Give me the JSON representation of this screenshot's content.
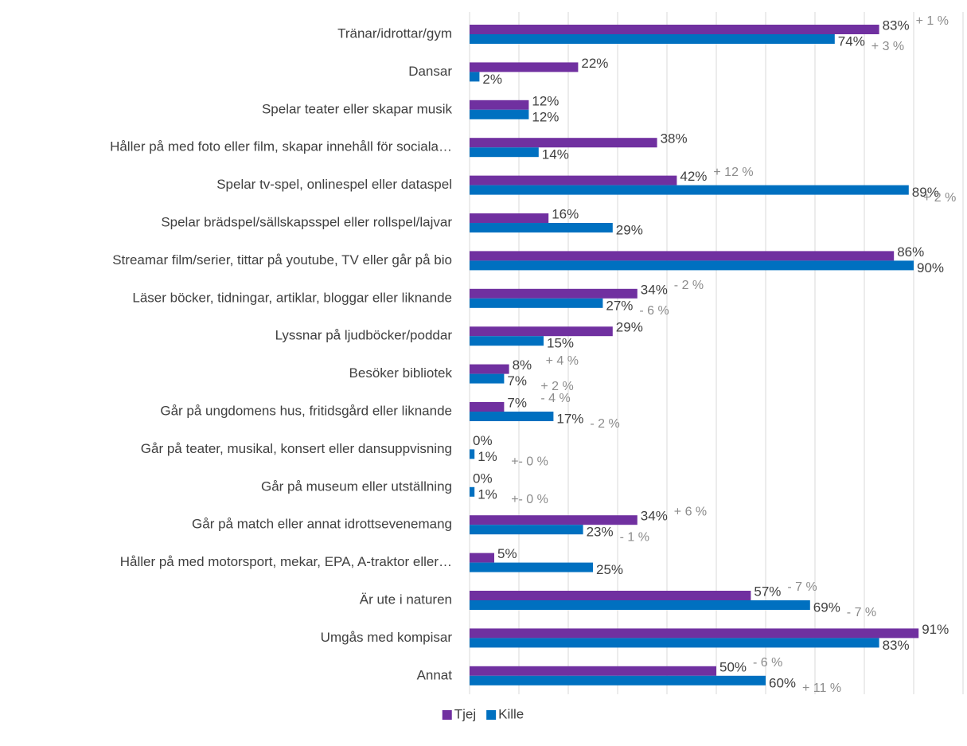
{
  "chart_data": {
    "type": "bar",
    "orientation": "horizontal",
    "categories": [
      "Tränar/idrottar/gym",
      "Dansar",
      "Spelar teater eller skapar musik",
      "Håller på med foto eller film, skapar innehåll för sociala…",
      "Spelar tv-spel, onlinespel eller dataspel",
      "Spelar brädspel/sällskapsspel eller rollspel/lajvar",
      "Streamar film/serier, tittar på youtube, TV eller går på bio",
      "Läser böcker, tidningar, artiklar, bloggar eller liknande",
      "Lyssnar på ljudböcker/poddar",
      "Besöker bibliotek",
      "Går på ungdomens hus, fritidsgård eller liknande",
      "Går på teater, musikal, konsert eller dansuppvisning",
      "Går på museum eller utställning",
      "Går på match eller annat idrottsevenemang",
      "Håller på med motorsport, mekar, EPA, A-traktor eller…",
      "Är ute i naturen",
      "Umgås med kompisar",
      "Annat"
    ],
    "series": [
      {
        "name": "Tjej",
        "color": "#7030a0",
        "values": [
          83,
          22,
          12,
          38,
          42,
          16,
          86,
          34,
          29,
          8,
          7,
          0,
          0,
          34,
          5,
          57,
          91,
          50
        ],
        "value_labels": [
          "83%",
          "22%",
          "12%",
          "38%",
          "42%",
          "16%",
          "86%",
          "34%",
          "29%",
          "8%",
          "7%",
          "0%",
          "0%",
          "34%",
          "5%",
          "57%",
          "91%",
          "50%"
        ],
        "changes": [
          "+ 1 %",
          null,
          null,
          null,
          "+ 12 %",
          null,
          null,
          "- 2 %",
          null,
          "+ 4 %",
          "- 4 %",
          null,
          null,
          "+ 6 %",
          null,
          "- 7 %",
          null,
          "- 6 %"
        ]
      },
      {
        "name": "Kille",
        "color": "#0070c0",
        "values": [
          74,
          2,
          12,
          14,
          89,
          29,
          90,
          27,
          15,
          7,
          17,
          1,
          1,
          23,
          25,
          69,
          83,
          60
        ],
        "value_labels": [
          "74%",
          "2%",
          "12%",
          "14%",
          "89%",
          "29%",
          "90%",
          "27%",
          "15%",
          "7%",
          "17%",
          "1%",
          "1%",
          "23%",
          "25%",
          "69%",
          "83%",
          "60%"
        ],
        "changes": [
          "+ 3 %",
          null,
          null,
          null,
          "+ 2 %",
          null,
          null,
          "- 6 %",
          null,
          "+ 2 %",
          "- 2 %",
          "+- 0 %",
          "+- 0 %",
          "- 1 %",
          null,
          "- 7 %",
          null,
          "+ 11 %"
        ]
      }
    ],
    "xlim": [
      0,
      100
    ],
    "xticks": [
      0,
      10,
      20,
      30,
      40,
      50,
      60,
      70,
      80,
      90,
      100
    ],
    "grid": true,
    "legend": "bottom"
  }
}
